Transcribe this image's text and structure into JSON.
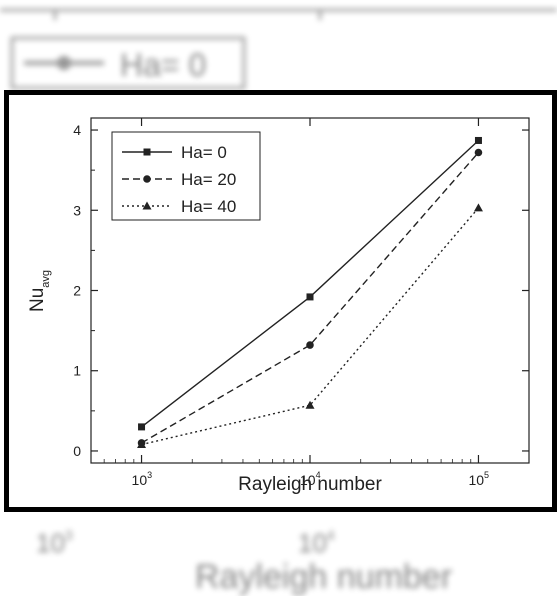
{
  "chart_data": {
    "type": "line",
    "title": "",
    "xlabel": "Rayleigh number",
    "ylabel": "Nu",
    "ylabel_sub": "avg",
    "x_scale": "log",
    "x": [
      1000,
      10000,
      100000
    ],
    "x_tick_labels": [
      {
        "base": "10",
        "exp": "3"
      },
      {
        "base": "10",
        "exp": "4"
      },
      {
        "base": "10",
        "exp": "5"
      }
    ],
    "ylim": [
      -0.15,
      4.15
    ],
    "y_ticks": [
      "0",
      "1",
      "2",
      "3",
      "4"
    ],
    "legend_position": "top-left",
    "series": [
      {
        "name": "Ha= 0",
        "values": [
          0.3,
          1.92,
          3.87
        ],
        "line_style": "solid",
        "marker": "square"
      },
      {
        "name": "Ha= 20",
        "values": [
          0.1,
          1.32,
          3.72
        ],
        "line_style": "dashed",
        "marker": "circle"
      },
      {
        "name": "Ha= 40",
        "values": [
          0.08,
          0.57,
          3.03
        ],
        "line_style": "dotted",
        "marker": "triangle"
      }
    ],
    "colors": {
      "line": "#222222",
      "axis": "#222222"
    },
    "background_text": {
      "legend_entry": "Ha= 0",
      "xlabel": "Rayleigh number",
      "tick_labels": [
        {
          "base": "10",
          "exp": "3"
        },
        {
          "base": "10",
          "exp": "4"
        }
      ]
    }
  }
}
